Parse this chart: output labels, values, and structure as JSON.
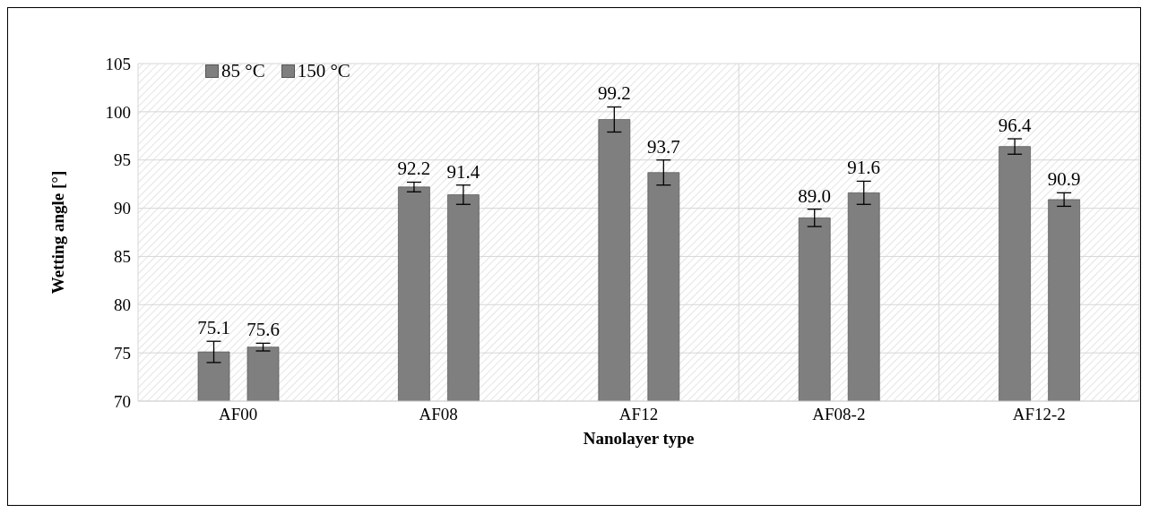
{
  "chart_data": {
    "type": "bar",
    "xlabel": "Nanolayer type",
    "ylabel": "Wetting angle [°]",
    "categories": [
      "AF00",
      "AF08",
      "AF12",
      "AF08-2",
      "AF12-2"
    ],
    "series": [
      {
        "name": "85 °C",
        "color": "#7f7f7f",
        "values": [
          75.1,
          92.2,
          99.2,
          89.0,
          96.4
        ],
        "errors": [
          1.1,
          0.5,
          1.3,
          0.9,
          0.8
        ],
        "value_labels": [
          "75.1",
          "92.2",
          "99.2",
          "89.0",
          "96.4"
        ]
      },
      {
        "name": "150 °C",
        "color": "#7f7f7f",
        "values": [
          75.6,
          91.4,
          93.7,
          91.6,
          90.9
        ],
        "errors": [
          0.4,
          1.0,
          1.3,
          1.2,
          0.7
        ],
        "value_labels": [
          "75.6",
          "91.4",
          "93.7",
          "91.6",
          "90.9"
        ]
      }
    ],
    "ylim": [
      70,
      105
    ],
    "yticks": [
      70,
      75,
      80,
      85,
      90,
      95,
      100,
      105
    ],
    "grid": true,
    "legend": "top left"
  }
}
